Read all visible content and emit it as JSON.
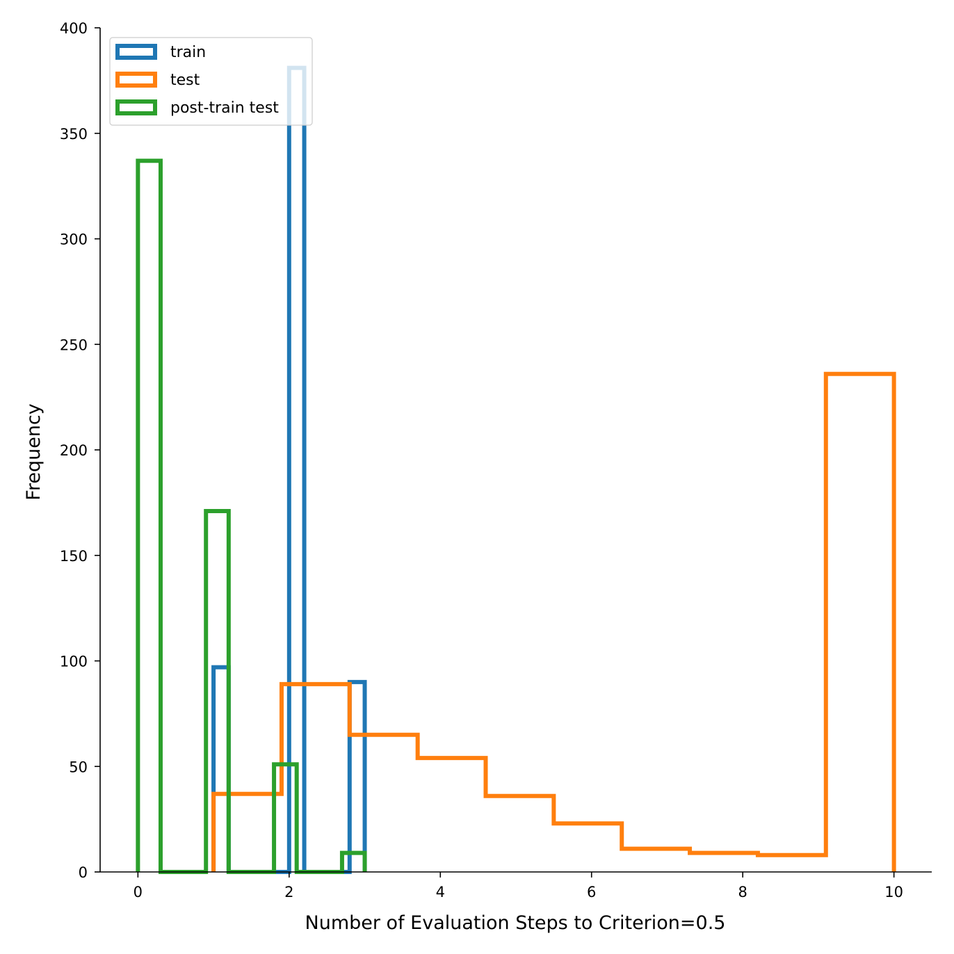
{
  "chart_data": {
    "type": "histogram",
    "xlabel": "Number of Evaluation Steps to Criterion=0.5",
    "ylabel": "Frequency",
    "xlim": [
      -0.5,
      10.5
    ],
    "ylim": [
      0,
      400
    ],
    "xticks": [
      0,
      2,
      4,
      6,
      8,
      10
    ],
    "yticks": [
      0,
      50,
      100,
      150,
      200,
      250,
      300,
      350,
      400
    ],
    "grid": false,
    "legend_position": "upper-left",
    "series": [
      {
        "name": "train",
        "color": "#1f77b4",
        "bin_edges": [
          1.0,
          1.2,
          1.4,
          1.6,
          1.8,
          2.0,
          2.2,
          2.4,
          2.6,
          2.8,
          3.0
        ],
        "counts": [
          97,
          0,
          0,
          0,
          0,
          381,
          0,
          0,
          0,
          90
        ]
      },
      {
        "name": "test",
        "color": "#ff7f0e",
        "bin_edges": [
          1.0,
          1.9,
          2.8,
          3.7,
          4.6,
          5.5,
          6.4,
          7.3,
          8.2,
          9.1,
          10.0
        ],
        "counts": [
          37,
          89,
          65,
          54,
          36,
          23,
          11,
          9,
          8,
          236
        ]
      },
      {
        "name": "post-train test",
        "color": "#2ca02c",
        "bin_edges": [
          0.0,
          0.3,
          0.6,
          0.9,
          1.2,
          1.5,
          1.8,
          2.1,
          2.4,
          2.7,
          3.0
        ],
        "counts": [
          337,
          0,
          0,
          171,
          0,
          0,
          51,
          0,
          0,
          9
        ]
      }
    ]
  }
}
